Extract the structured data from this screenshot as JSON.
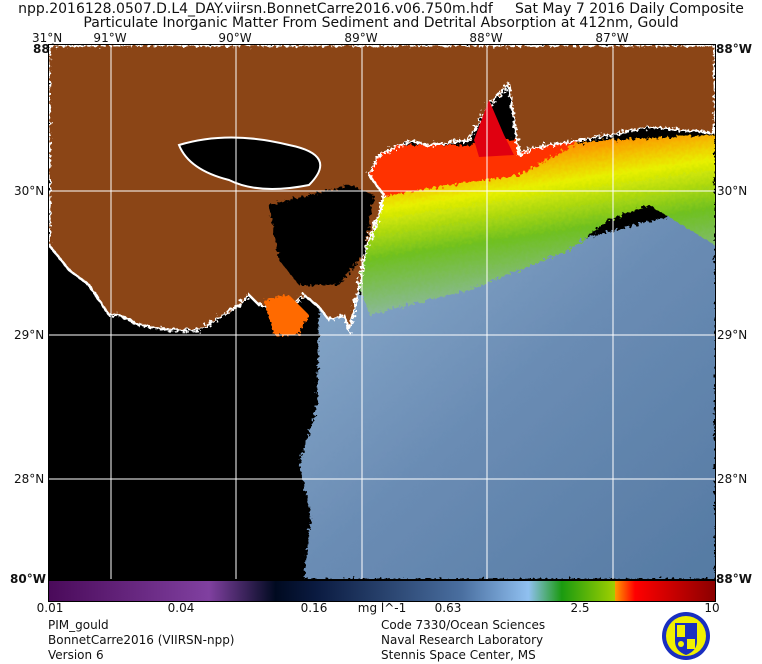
{
  "header": {
    "filename": "npp.2016128.0507.D.L4_DAY.viirsn.BonnetCarre2016.v06.750m.hdf",
    "date": "Sat May  7 2016 Daily Composite",
    "product": "Particulate Inorganic Matter From Sediment and Detrital Absorption at 412nm, Gould"
  },
  "map": {
    "longitude_labels": [
      "91°W",
      "90°W",
      "89°W",
      "88°W",
      "87°W"
    ],
    "latitude_labels": [
      "30°N",
      "29°N",
      "28°N"
    ],
    "corner_labels": {
      "top_left_lat": "31°N",
      "top_left_lon": "88°W",
      "top_right_lat": "31°N",
      "top_right_lon": "88°W",
      "bottom_left": "80°W",
      "bottom_right": "88°W"
    },
    "colors": {
      "land": "#8b4513",
      "no_data": "#000000",
      "coast": "#ffffff",
      "offshore": "#5f80a8"
    }
  },
  "colorbar": {
    "tick_labels": [
      "0.01",
      "0.04",
      "0.16",
      "0.63",
      "2.5",
      "10"
    ],
    "units": "mg l^-1",
    "scale": "log",
    "range": [
      0.01,
      10
    ]
  },
  "footer": {
    "left": [
      "PIM_gould",
      "BonnetCarre2016 (VIIRSN-npp)",
      "Version 6"
    ],
    "right": [
      "Code 7330/Ocean Sciences",
      "Naval Research Laboratory",
      "Stennis Space Center, MS"
    ],
    "logo": "Naval Research Laboratory seal"
  }
}
